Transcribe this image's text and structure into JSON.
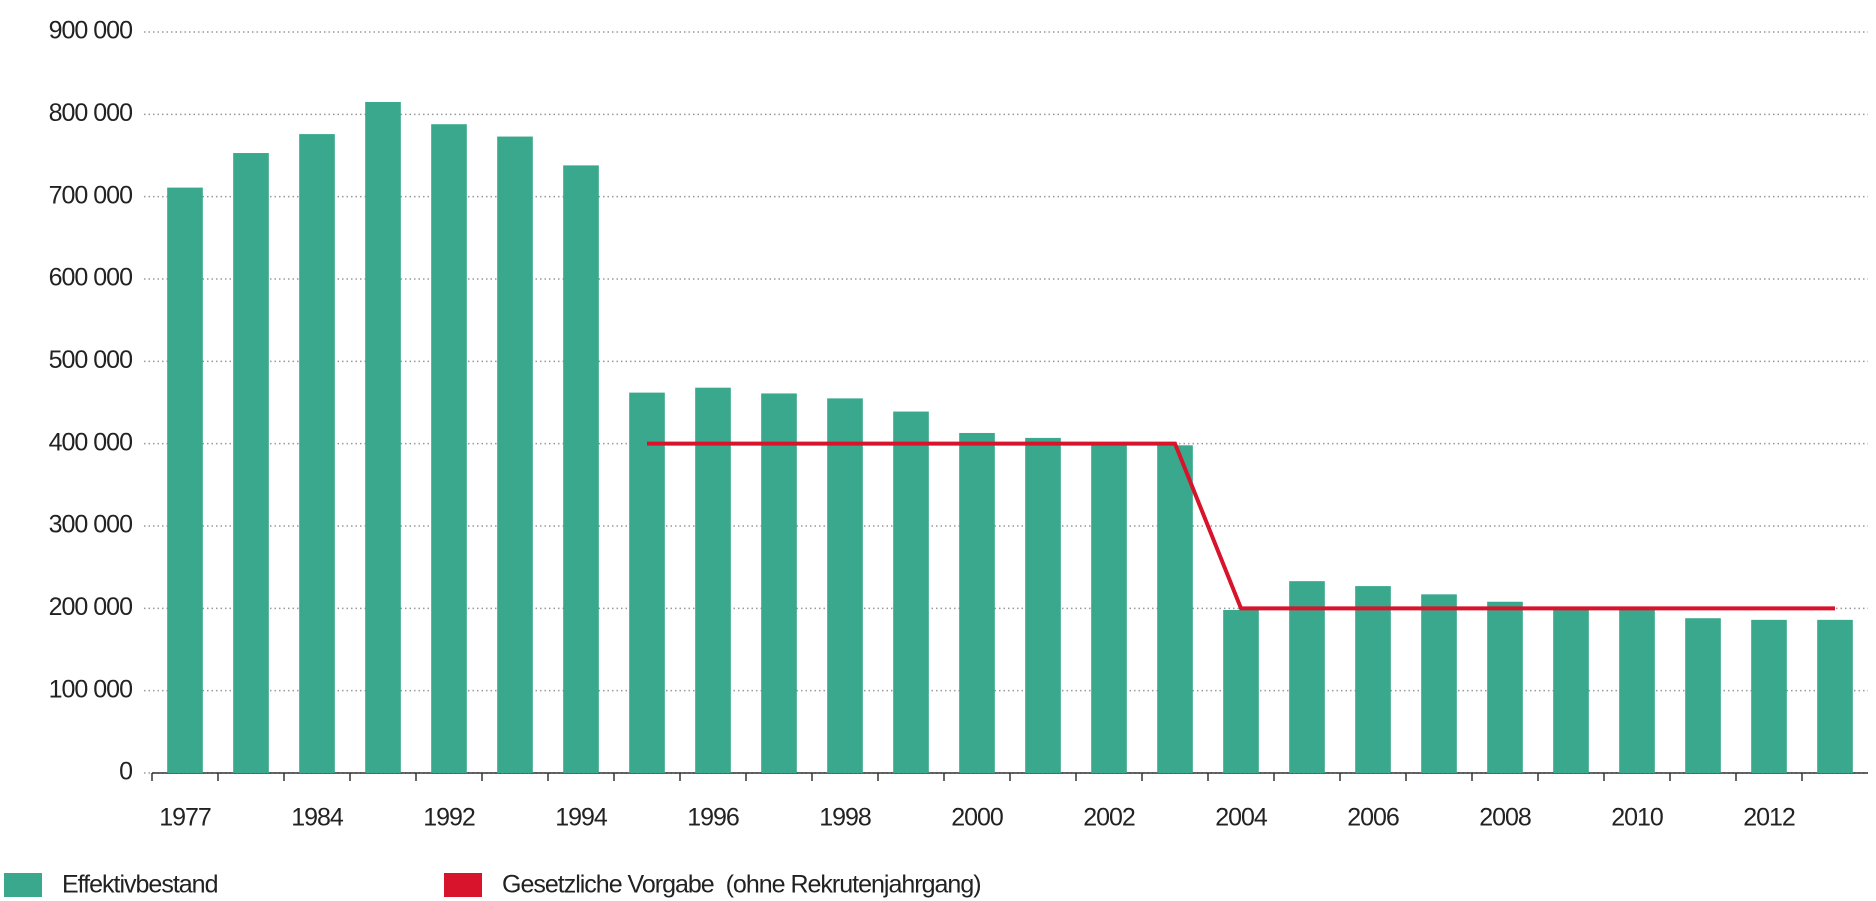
{
  "chart_data": {
    "type": "bar",
    "categories": [
      "1977",
      null,
      "1984",
      null,
      "1992",
      null,
      "1994",
      null,
      "1996",
      null,
      "1998",
      null,
      "2000",
      null,
      "2002",
      null,
      "2004",
      null,
      "2006",
      null,
      "2008",
      null,
      "2010",
      null,
      "2012",
      null
    ],
    "series": [
      {
        "name": "Effektivbestand",
        "type": "bar",
        "color": "#3aa88c",
        "values": [
          711000,
          753000,
          776000,
          815000,
          788000,
          773000,
          738000,
          462000,
          468000,
          461000,
          455000,
          439000,
          413000,
          407000,
          401000,
          398000,
          198000,
          233000,
          227000,
          217000,
          208000,
          198000,
          198000,
          188000,
          186000,
          186000
        ]
      },
      {
        "name": "Gesetzliche Vorgabe  (ohne Rekrutenjahrgang)",
        "type": "line",
        "color": "#d8142c",
        "values": [
          null,
          null,
          null,
          null,
          null,
          null,
          null,
          400000,
          400000,
          400000,
          400000,
          400000,
          400000,
          400000,
          400000,
          400000,
          200000,
          200000,
          200000,
          200000,
          200000,
          200000,
          200000,
          200000,
          200000,
          200000
        ]
      }
    ],
    "ylim": [
      0,
      900000
    ],
    "yticks": [
      0,
      {
        "value": 100000,
        "label": "100 000"
      },
      {
        "value": 200000,
        "label": "200 000"
      },
      {
        "value": 300000,
        "label": "300 000"
      },
      {
        "value": 400000,
        "label": "400 000"
      },
      {
        "value": 500000,
        "label": "500 000"
      },
      {
        "value": 600000,
        "label": "600 000"
      },
      {
        "value": 700000,
        "label": "700 000"
      },
      {
        "value": 800000,
        "label": "800 000"
      },
      {
        "value": 900000,
        "label": "900 000"
      }
    ],
    "grid": true,
    "legend": "bottom-left"
  }
}
